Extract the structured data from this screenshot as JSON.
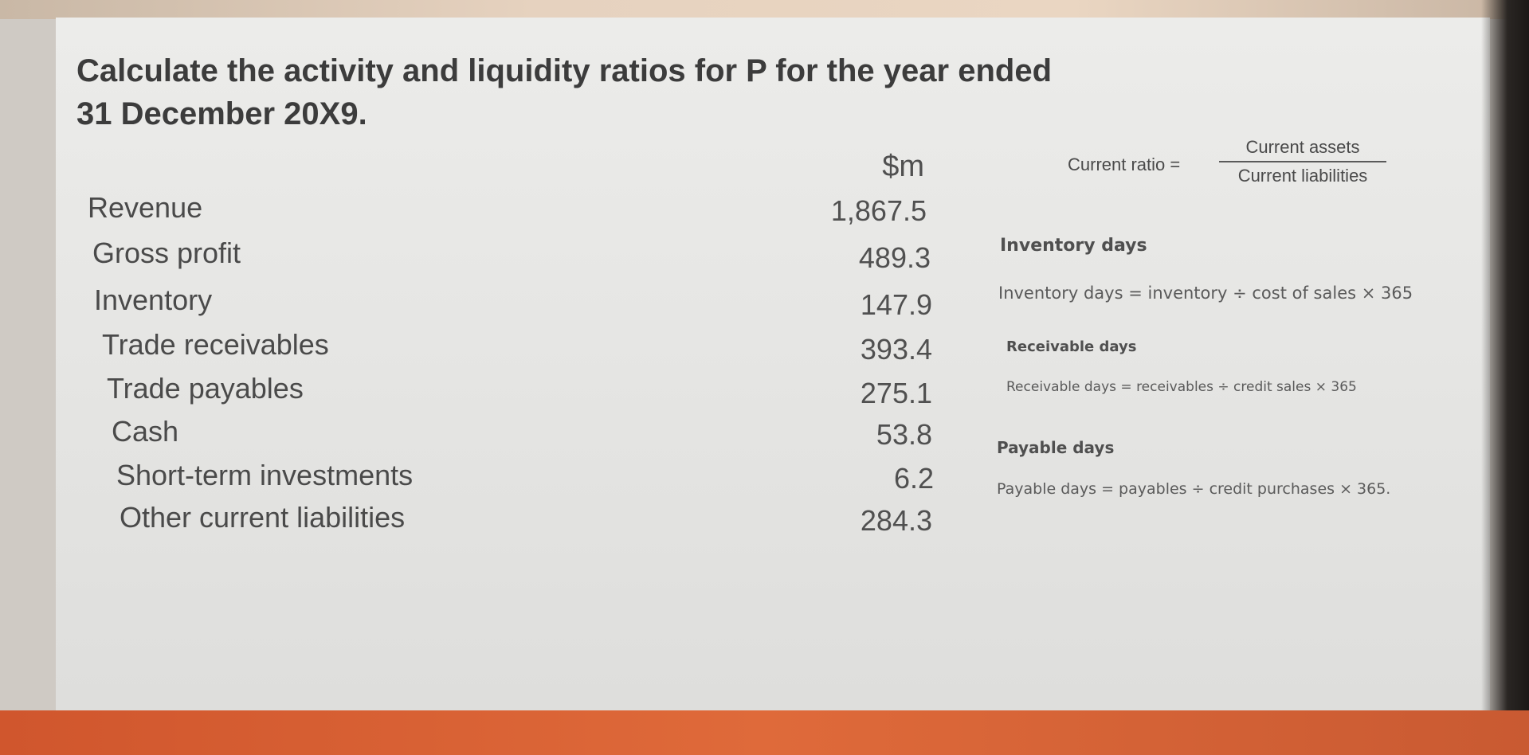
{
  "slide": {
    "title_line1": "Calculate the activity and liquidity ratios for P for the year ended",
    "title_line2": "31 December 20X9.",
    "unit_header": "$m",
    "rows": [
      {
        "label": "Revenue",
        "value": "1,867.5"
      },
      {
        "label": "Gross profit",
        "value": "489.3"
      },
      {
        "label": "Inventory",
        "value": "147.9"
      },
      {
        "label": "Trade receivables",
        "value": "393.4"
      },
      {
        "label": "Trade payables",
        "value": "275.1"
      },
      {
        "label": "Cash",
        "value": "53.8"
      },
      {
        "label": "Short-term investments",
        "value": "6.2"
      },
      {
        "label": "Other current liabilities",
        "value": "284.3"
      }
    ],
    "current_ratio": {
      "lhs": "Current ratio =",
      "numerator": "Current assets",
      "denominator": "Current liabilities"
    },
    "notes": [
      {
        "heading": "Inventory days",
        "formula": "Inventory days = inventory ÷ cost of sales × 365"
      },
      {
        "heading": "Receivable days",
        "formula": "Receivable days = receivables ÷ credit sales × 365"
      },
      {
        "heading": "Payable days",
        "formula": "Payable days = payables ÷ credit purchases × 365."
      }
    ]
  },
  "colors": {
    "slide_background": "#e8e8e6",
    "bottom_bar": "#d95f33",
    "text": "#4a4a4a"
  }
}
